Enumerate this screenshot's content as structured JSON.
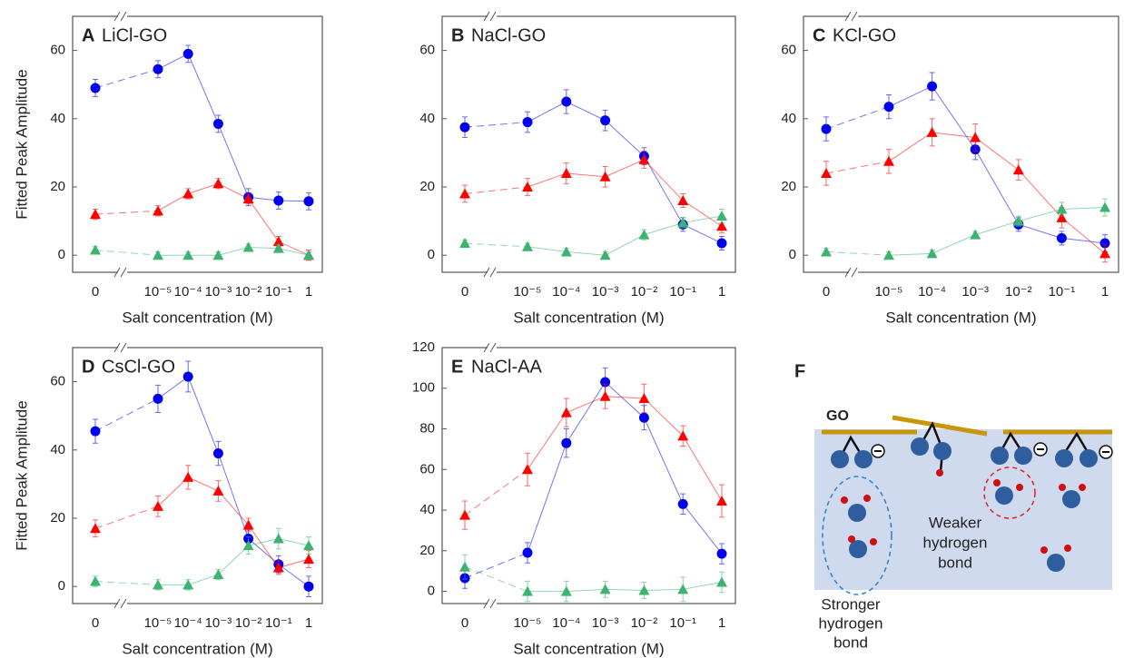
{
  "chart_data": [
    {
      "type": "line",
      "label": "A",
      "title": "LiCl-GO",
      "y_label": "Fitted Peak Amplitude",
      "x_label": "Salt concentration (M)",
      "categories": [
        "0",
        "10⁻⁵",
        "10⁻⁴",
        "10⁻³",
        "10⁻²",
        "10⁻¹",
        "1"
      ],
      "ylim": [
        -5,
        70
      ],
      "yticks": [
        0,
        20,
        40,
        60
      ],
      "series": [
        {
          "color": "#0000ee",
          "marker": "circle",
          "values": [
            49,
            54.5,
            59,
            38.5,
            17,
            16,
            15.8
          ],
          "errors": [
            2.5,
            2.5,
            2.5,
            2.5,
            2.5,
            2.5,
            2.5
          ]
        },
        {
          "color": "#ff0000",
          "marker": "triangle",
          "values": [
            12,
            13,
            18,
            21,
            16.5,
            4,
            0
          ],
          "errors": [
            1.5,
            1.5,
            1.5,
            1.5,
            1.5,
            1.5,
            1.5
          ]
        },
        {
          "color": "#3cb371",
          "marker": "triangle",
          "values": [
            1.5,
            0,
            0,
            0,
            2.3,
            2,
            0
          ],
          "errors": [
            1,
            1,
            1,
            1,
            1,
            1,
            1
          ]
        }
      ]
    },
    {
      "type": "line",
      "label": "B",
      "title": "NaCl-GO",
      "x_label": "Salt concentration (M)",
      "categories": [
        "0",
        "10⁻⁵",
        "10⁻⁴",
        "10⁻³",
        "10⁻²",
        "10⁻¹",
        "1"
      ],
      "ylim": [
        -5,
        70
      ],
      "yticks": [
        0,
        20,
        40,
        60
      ],
      "series": [
        {
          "color": "#0000ee",
          "marker": "circle",
          "values": [
            37.5,
            39,
            45,
            39.5,
            29,
            9,
            3.5
          ],
          "errors": [
            3,
            3,
            3.5,
            3,
            2.5,
            2,
            2
          ]
        },
        {
          "color": "#ff0000",
          "marker": "triangle",
          "values": [
            18,
            20,
            24,
            23,
            28,
            16,
            8.5
          ],
          "errors": [
            2.5,
            2.5,
            3,
            3,
            2.5,
            2,
            2
          ]
        },
        {
          "color": "#3cb371",
          "marker": "triangle",
          "values": [
            3.5,
            2.5,
            1,
            0,
            6,
            9.5,
            11.5
          ],
          "errors": [
            1,
            1,
            1,
            1,
            1.5,
            1.5,
            2
          ]
        }
      ]
    },
    {
      "type": "line",
      "label": "C",
      "title": "KCl-GO",
      "x_label": "Salt concentration (M)",
      "categories": [
        "0",
        "10⁻⁵",
        "10⁻⁴",
        "10⁻³",
        "10⁻²",
        "10⁻¹",
        "1"
      ],
      "ylim": [
        -5,
        70
      ],
      "yticks": [
        0,
        20,
        40,
        60
      ],
      "series": [
        {
          "color": "#0000ee",
          "marker": "circle",
          "values": [
            37,
            43.5,
            49.5,
            31,
            9,
            5,
            3.5
          ],
          "errors": [
            3.5,
            3.5,
            4,
            3,
            2,
            2,
            2.5
          ]
        },
        {
          "color": "#ff0000",
          "marker": "triangle",
          "values": [
            24,
            27.5,
            36,
            34.5,
            25,
            11,
            0.5
          ],
          "errors": [
            3.5,
            3.5,
            4,
            4,
            3,
            3,
            2.5
          ]
        },
        {
          "color": "#3cb371",
          "marker": "triangle",
          "values": [
            1,
            0,
            0.5,
            6,
            10,
            13.5,
            14
          ],
          "errors": [
            1,
            1,
            1,
            1,
            1.5,
            2,
            2.5
          ]
        }
      ]
    },
    {
      "type": "line",
      "label": "D",
      "title": "CsCl-GO",
      "y_label": "Fitted Peak Amplitude",
      "x_label": "Salt concentration (M)",
      "categories": [
        "0",
        "10⁻⁵",
        "10⁻⁴",
        "10⁻³",
        "10⁻²",
        "10⁻¹",
        "1"
      ],
      "ylim": [
        -5,
        70
      ],
      "yticks": [
        0,
        20,
        40,
        60
      ],
      "series": [
        {
          "color": "#0000ee",
          "marker": "circle",
          "values": [
            45.5,
            55,
            61.5,
            39,
            14,
            6.5,
            0
          ],
          "errors": [
            3.5,
            4,
            4.5,
            3.5,
            2.5,
            2.5,
            3
          ]
        },
        {
          "color": "#ff0000",
          "marker": "triangle",
          "values": [
            17,
            23.5,
            32,
            28,
            18,
            5.5,
            8
          ],
          "errors": [
            2.5,
            3,
            3.5,
            3,
            2,
            2,
            2.5
          ]
        },
        {
          "color": "#3cb371",
          "marker": "triangle",
          "values": [
            1.5,
            0.5,
            0.5,
            3.5,
            12,
            14,
            12
          ],
          "errors": [
            1.5,
            1.5,
            1.5,
            1.5,
            2.5,
            3,
            2.5
          ]
        }
      ]
    },
    {
      "type": "line",
      "label": "E",
      "title": "NaCl-AA",
      "x_label": "Salt concentration (M)",
      "categories": [
        "0",
        "10⁻⁵",
        "10⁻⁴",
        "10⁻³",
        "10⁻²",
        "10⁻¹",
        "1"
      ],
      "ylim": [
        -6,
        120
      ],
      "yticks": [
        0,
        20,
        40,
        60,
        80,
        100,
        120
      ],
      "series": [
        {
          "color": "#0000ee",
          "marker": "circle",
          "values": [
            6.5,
            19,
            73,
            103,
            85.5,
            43,
            18.5
          ],
          "errors": [
            5,
            5,
            7,
            7,
            6,
            5,
            5
          ]
        },
        {
          "color": "#ff0000",
          "marker": "triangle",
          "values": [
            37.5,
            60,
            88,
            96,
            95,
            76.5,
            44.5
          ],
          "errors": [
            7,
            8,
            7,
            6,
            7,
            5,
            8
          ]
        },
        {
          "color": "#3cb371",
          "marker": "triangle",
          "values": [
            12,
            0,
            0,
            1,
            0.5,
            1,
            4.5
          ],
          "errors": [
            6,
            5,
            5,
            4,
            4,
            6,
            5
          ]
        }
      ]
    }
  ],
  "diagram": {
    "label": "F",
    "surface": "GO",
    "weak_lines": [
      "Weaker",
      "hydrogen",
      "bond"
    ],
    "strong_lines": [
      "Stronger",
      "hydrogen",
      "bond"
    ]
  }
}
